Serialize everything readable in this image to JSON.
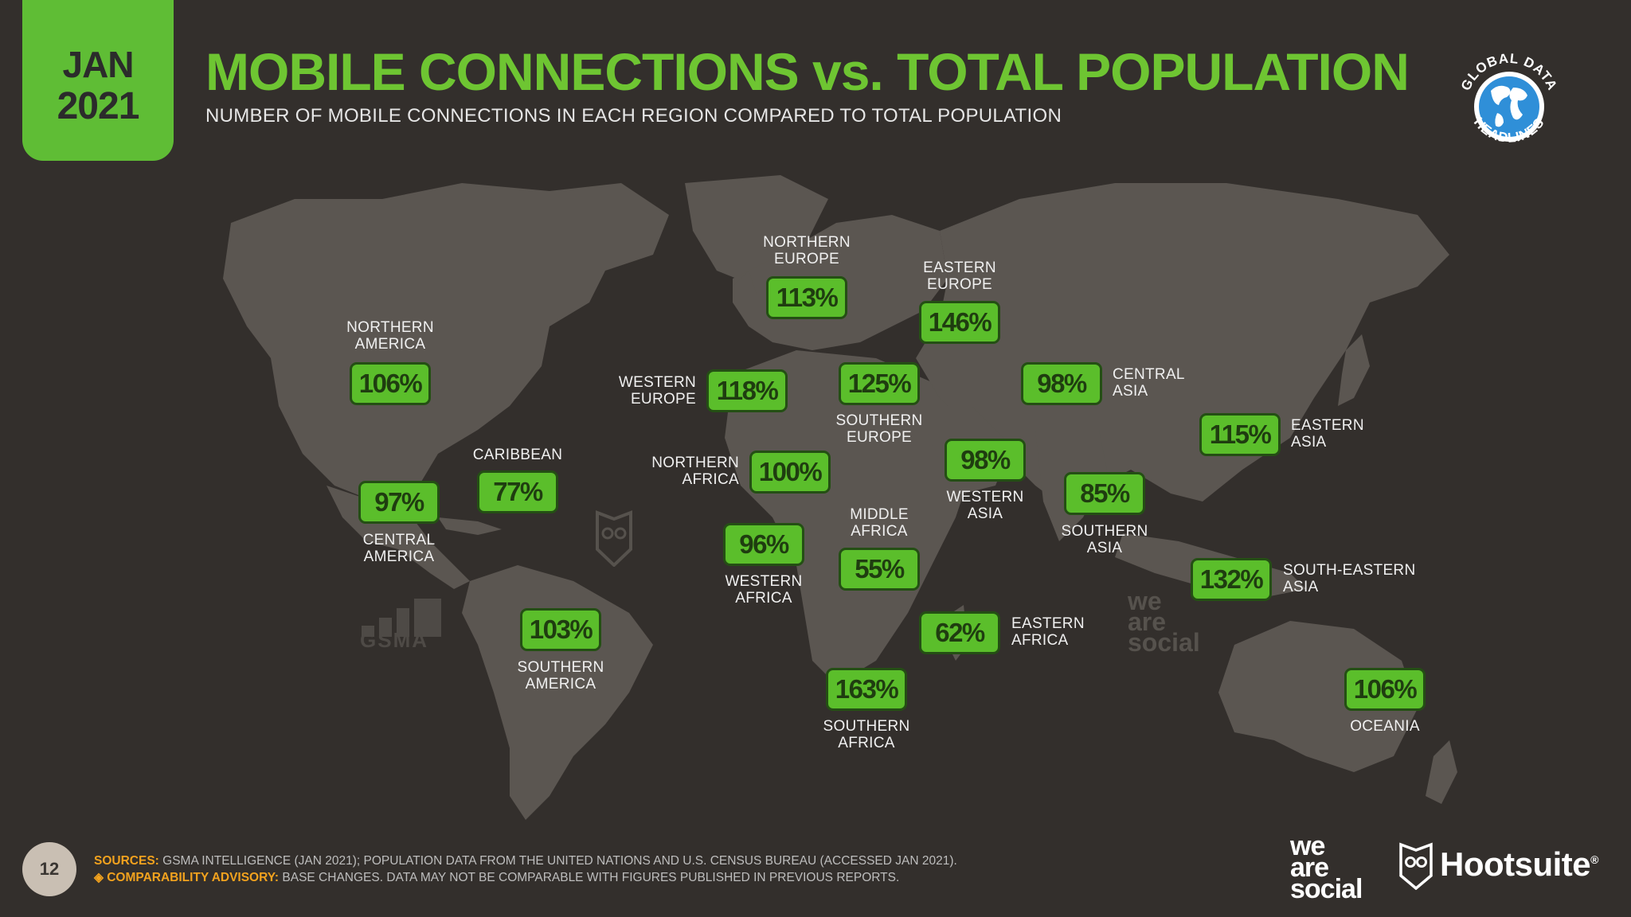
{
  "header": {
    "month": "JAN",
    "year": "2021",
    "title": "MOBILE CONNECTIONS vs. TOTAL POPULATION",
    "subtitle": "NUMBER OF MOBILE CONNECTIONS IN EACH REGION COMPARED TO TOTAL POPULATION"
  },
  "logos": {
    "global_data_top": "GLOBAL DATA",
    "global_data_bottom": "HEADLINES",
    "gsma": "GSMA",
    "we_are_social_watermark": [
      "we",
      "are",
      "social"
    ],
    "we_are_social": [
      "we",
      "are",
      "social"
    ],
    "hootsuite": "Hootsuite",
    "hootsuite_mark": "®"
  },
  "regions": [
    {
      "name": "NORTHERN\nAMERICA",
      "value": "106%"
    },
    {
      "name": "CARIBBEAN",
      "value": "77%"
    },
    {
      "name": "CENTRAL\nAMERICA",
      "value": "97%"
    },
    {
      "name": "SOUTHERN\nAMERICA",
      "value": "103%"
    },
    {
      "name": "NORTHERN\nEUROPE",
      "value": "113%"
    },
    {
      "name": "WESTERN\nEUROPE",
      "value": "118%"
    },
    {
      "name": "SOUTHERN\nEUROPE",
      "value": "125%"
    },
    {
      "name": "EASTERN\nEUROPE",
      "value": "146%"
    },
    {
      "name": "NORTHERN\nAFRICA",
      "value": "100%"
    },
    {
      "name": "WESTERN\nAFRICA",
      "value": "96%"
    },
    {
      "name": "MIDDLE\nAFRICA",
      "value": "55%"
    },
    {
      "name": "EASTERN\nAFRICA",
      "value": "62%"
    },
    {
      "name": "SOUTHERN\nAFRICA",
      "value": "163%"
    },
    {
      "name": "WESTERN\nASIA",
      "value": "98%"
    },
    {
      "name": "CENTRAL\nASIA",
      "value": "98%"
    },
    {
      "name": "SOUTHERN\nASIA",
      "value": "85%"
    },
    {
      "name": "EASTERN\nASIA",
      "value": "115%"
    },
    {
      "name": "SOUTH-EASTERN\nASIA",
      "value": "132%"
    },
    {
      "name": "OCEANIA",
      "value": "106%"
    }
  ],
  "footer": {
    "page_number": "12",
    "sources_label": "SOURCES:",
    "sources_text": " GSMA INTELLIGENCE (JAN 2021); POPULATION DATA FROM THE UNITED NATIONS AND U.S. CENSUS BUREAU (ACCESSED JAN 2021).",
    "advisory_label": "◈ COMPARABILITY ADVISORY:",
    "advisory_text": " BASE CHANGES. DATA MAY NOT BE COMPARABLE WITH FIGURES PUBLISHED IN PREVIOUS REPORTS."
  },
  "colors": {
    "background": "#332f2c",
    "land": "#5b5651",
    "accent_green": "#6ec532",
    "value_box": "#5bbe2b",
    "advisory_orange": "#f2a21e"
  }
}
